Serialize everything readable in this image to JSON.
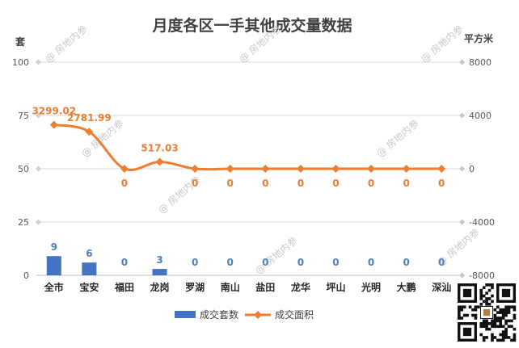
{
  "watermark": "房地内参",
  "chart_data": {
    "type": "bar+line",
    "title": "月度各区一手其他成交量数据",
    "categories": [
      "全市",
      "宝安",
      "福田",
      "龙岗",
      "罗湖",
      "南山",
      "盐田",
      "龙华",
      "坪山",
      "光明",
      "大鹏",
      "深汕"
    ],
    "left_axis": {
      "unit": "套",
      "ticks": [
        "0",
        "25",
        "50",
        "75",
        "100"
      ],
      "range": [
        0,
        100
      ]
    },
    "right_axis": {
      "unit": "平方米",
      "ticks": [
        "-8000",
        "-4000",
        "0",
        "4000",
        "8000"
      ],
      "range": [
        -8000,
        8000
      ]
    },
    "series": [
      {
        "name": "成交套数",
        "kind": "bar",
        "axis": "left",
        "color": "#4472c4",
        "label_color": "#4f81bd",
        "values": [
          9,
          6,
          0,
          3,
          0,
          0,
          0,
          0,
          0,
          0,
          0,
          0
        ],
        "labels": [
          "9",
          "6",
          "0",
          "3",
          "0",
          "0",
          "0",
          "0",
          "0",
          "0",
          "0",
          "0"
        ]
      },
      {
        "name": "成交面积",
        "kind": "line",
        "axis": "right",
        "color": "#ed7d31",
        "values": [
          3299.02,
          2781.99,
          0,
          517.03,
          0,
          0,
          0,
          0,
          0,
          0,
          0,
          0
        ],
        "labels": [
          "3299.02",
          "2781.99",
          "0",
          "517.03",
          "0",
          "0",
          "0",
          "0",
          "0",
          "0",
          "0",
          "0"
        ]
      }
    ],
    "grid": true,
    "legend": "bottom"
  }
}
